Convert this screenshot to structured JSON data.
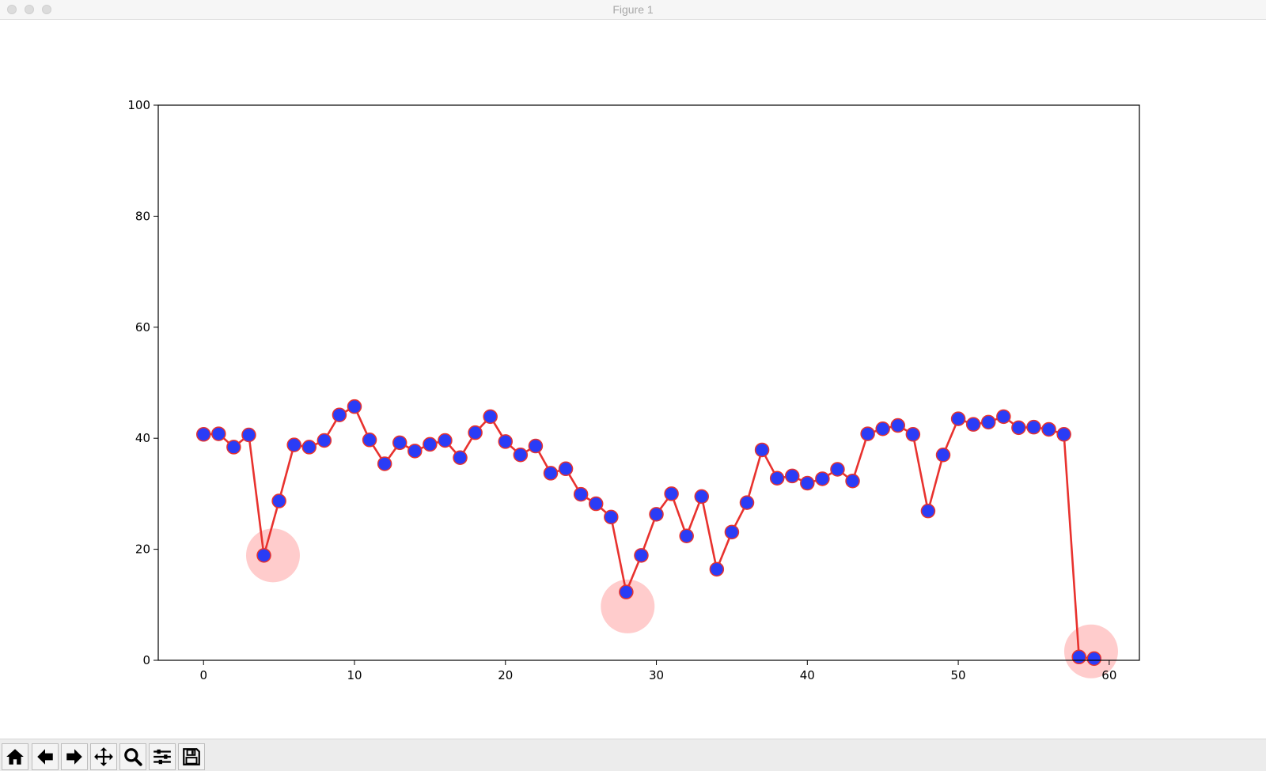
{
  "window": {
    "title": "Figure 1"
  },
  "toolbar": {
    "tools": [
      "home-icon",
      "back-icon",
      "forward-icon",
      "pan-icon",
      "zoom-icon",
      "configure-subplots-icon",
      "save-icon"
    ]
  },
  "colors": {
    "line": "#e8322e",
    "marker_fill": "#2a3cf6",
    "marker_edge": "#e8322e",
    "highlight": "#ff9a9a"
  },
  "chart_data": {
    "type": "line",
    "title": "",
    "xlabel": "",
    "ylabel": "",
    "xlim": [
      -3,
      62
    ],
    "ylim": [
      0,
      100
    ],
    "xticks": [
      0,
      10,
      20,
      30,
      40,
      50,
      60
    ],
    "yticks": [
      0,
      20,
      40,
      60,
      80,
      100
    ],
    "grid": false,
    "series": [
      {
        "x": [
          0,
          1,
          2,
          3,
          4,
          5,
          6,
          7,
          8,
          9,
          10,
          11,
          12,
          13,
          14,
          15,
          16,
          17,
          18,
          19,
          20,
          21,
          22,
          23,
          24,
          25,
          26,
          27,
          28,
          29,
          30,
          31,
          32,
          33,
          34,
          35,
          36,
          37,
          38,
          39,
          40,
          41,
          42,
          43,
          44,
          45,
          46,
          47,
          48,
          49,
          50,
          51,
          52,
          53,
          54,
          55,
          56,
          57,
          58,
          59
        ],
        "values": [
          40.7,
          40.8,
          38.4,
          40.6,
          18.9,
          28.7,
          38.8,
          38.4,
          39.6,
          44.2,
          45.7,
          39.7,
          35.4,
          39.2,
          37.7,
          38.9,
          39.6,
          36.5,
          41.0,
          43.9,
          39.4,
          37.0,
          38.6,
          33.7,
          34.5,
          29.9,
          28.2,
          25.8,
          12.3,
          18.9,
          26.3,
          30.0,
          22.4,
          29.5,
          16.4,
          23.1,
          28.4,
          37.9,
          32.8,
          33.2,
          31.9,
          32.7,
          34.4,
          32.3,
          40.8,
          41.7,
          42.3,
          40.7,
          26.9,
          37.0,
          43.5,
          42.5,
          42.9,
          43.9,
          41.9,
          42.0,
          41.6,
          40.7,
          0.6,
          0.3
        ]
      }
    ],
    "highlights": [
      {
        "x": 4.6,
        "y": 18.9
      },
      {
        "x": 28.1,
        "y": 9.7
      },
      {
        "x": 58.8,
        "y": 1.6
      }
    ]
  }
}
